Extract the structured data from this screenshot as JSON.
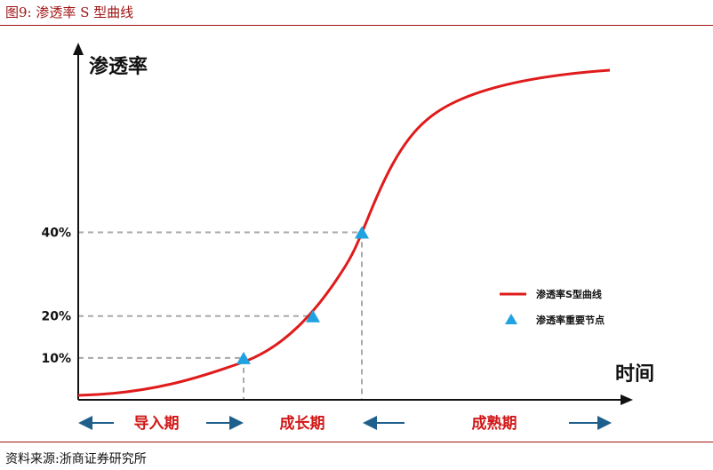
{
  "figure_title": "图9:   渗透率 S 型曲线",
  "source": "资料来源:浙商证券研究所",
  "colors": {
    "accent": "#a01414",
    "curve": "#e01b1b",
    "marker": "#1fa2e0",
    "guide": "#a8a8a8",
    "arrow": "#1f5f8b"
  },
  "chart_data": {
    "type": "line",
    "title": "",
    "ylabel": "渗透率",
    "xlabel": "时间",
    "ylim": [
      0,
      100
    ],
    "grid": false,
    "legend": "right",
    "y_ticks": [
      {
        "value": 10,
        "label": "10%"
      },
      {
        "value": 20,
        "label": "20%"
      },
      {
        "value": 40,
        "label": "40%"
      }
    ],
    "series": [
      {
        "name": "渗透率S型曲线",
        "kind": "curve"
      },
      {
        "name": "渗透率重要节点",
        "kind": "marker",
        "points": [
          {
            "y": 10
          },
          {
            "y": 20
          },
          {
            "y": 40
          }
        ]
      }
    ],
    "phases": [
      {
        "label": "导入期"
      },
      {
        "label": "成长期"
      },
      {
        "label": "成熟期"
      }
    ]
  }
}
